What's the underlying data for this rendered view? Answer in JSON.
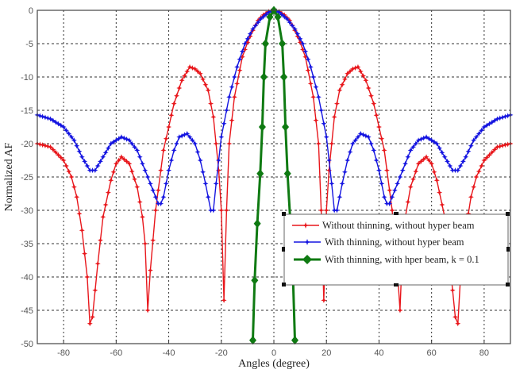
{
  "chart_data": {
    "type": "line",
    "title": "",
    "xlabel": "Angles (degree)",
    "ylabel": "Normalized AF",
    "xlim": [
      -90,
      90
    ],
    "ylim": [
      -50,
      0
    ],
    "xticks": [
      -80,
      -60,
      -40,
      -20,
      0,
      20,
      40,
      60,
      80
    ],
    "yticks": [
      0,
      -5,
      -10,
      -15,
      -20,
      -25,
      -30,
      -35,
      -40,
      -45,
      -50
    ],
    "grid": true,
    "legend_position": "lower right (inside)",
    "series": [
      {
        "name": "Without thinning, without hyper beam",
        "color": "#e8161b",
        "marker": "star",
        "x": [
          -90,
          -85,
          -80,
          -77,
          -75,
          -73,
          -71,
          -70,
          -69,
          -67,
          -65,
          -62,
          -60,
          -58,
          -55,
          -52,
          -50,
          -49,
          -48,
          -47,
          -45,
          -42,
          -38,
          -35,
          -32,
          -30,
          -28,
          -25,
          -23,
          -21,
          -20,
          -19,
          -18,
          -17,
          -15,
          -12,
          -10,
          -8,
          -6,
          -4,
          -2,
          0,
          2,
          4,
          6,
          8,
          10,
          12,
          15,
          17,
          18,
          19,
          20,
          21,
          23,
          25,
          28,
          30,
          32,
          35,
          38,
          42,
          45,
          47,
          48,
          49,
          50,
          52,
          55,
          58,
          60,
          62,
          65,
          67,
          69,
          70,
          71,
          73,
          75,
          77,
          80,
          85,
          90
        ],
        "values": [
          -20,
          -20.5,
          -22.5,
          -25,
          -28,
          -33,
          -40,
          -47,
          -46,
          -38,
          -31,
          -25.5,
          -23,
          -22,
          -23,
          -26.5,
          -31,
          -35,
          -45,
          -39,
          -30,
          -21,
          -14,
          -10.5,
          -8.5,
          -8.8,
          -9.5,
          -12,
          -16,
          -24,
          -30,
          -43.5,
          -30,
          -20,
          -13,
          -7,
          -4.8,
          -3,
          -1.5,
          -0.7,
          -0.2,
          0,
          -0.2,
          -0.7,
          -1.5,
          -3,
          -4.8,
          -7,
          -13,
          -20,
          -30,
          -43.5,
          -30,
          -24,
          -16,
          -12,
          -9.5,
          -8.8,
          -8.5,
          -10.5,
          -14,
          -21,
          -30,
          -39,
          -45,
          -35,
          -31,
          -26.5,
          -23,
          -22,
          -23,
          -25.5,
          -31,
          -38,
          -46,
          -47,
          -40,
          -33,
          -28,
          -25,
          -22.5,
          -20.5,
          -20
        ]
      },
      {
        "name": "With thinning, without hyper beam",
        "color": "#1414e0",
        "marker": "star",
        "x": [
          -90,
          -85,
          -80,
          -76,
          -73,
          -70,
          -68,
          -65,
          -62,
          -58,
          -55,
          -52,
          -49,
          -46,
          -44,
          -43,
          -42,
          -40,
          -38,
          -36,
          -33,
          -30,
          -28,
          -26,
          -24,
          -23,
          -22,
          -20,
          -17,
          -14,
          -11,
          -8,
          -5,
          -2,
          0,
          2,
          5,
          8,
          11,
          14,
          17,
          20,
          22,
          23,
          24,
          26,
          28,
          30,
          33,
          36,
          38,
          40,
          42,
          43,
          44,
          46,
          49,
          52,
          55,
          58,
          62,
          65,
          68,
          70,
          73,
          76,
          80,
          85,
          90
        ],
        "values": [
          -15.7,
          -16.3,
          -17.5,
          -19.5,
          -22,
          -24,
          -24,
          -22,
          -20,
          -19,
          -19.5,
          -21,
          -24,
          -27,
          -29,
          -29,
          -28,
          -24,
          -21,
          -19,
          -18.5,
          -20,
          -22.5,
          -26,
          -30,
          -30,
          -26,
          -19,
          -13,
          -8.5,
          -5,
          -2.8,
          -1.3,
          -0.3,
          0,
          -0.3,
          -1.3,
          -2.8,
          -5,
          -8.5,
          -13,
          -19,
          -26,
          -30,
          -30,
          -26,
          -22.5,
          -20,
          -18.5,
          -19,
          -21,
          -24,
          -28,
          -29,
          -29,
          -27,
          -24,
          -21,
          -19.5,
          -19,
          -20,
          -22,
          -24,
          -24,
          -22,
          -19.5,
          -17.5,
          -16.3,
          -15.7
        ]
      },
      {
        "name": "With thinning, with hper beam, k = 0.1",
        "color": "#0f7a12",
        "marker": "diamond",
        "x": [
          -8,
          -7.3,
          -6.3,
          -5.2,
          -4.4,
          -3.8,
          -3.2,
          -1.5,
          0,
          1.5,
          3.2,
          3.8,
          4.4,
          5.2,
          6.3,
          7.3,
          8
        ],
        "values": [
          -49.5,
          -40.5,
          -32,
          -24.5,
          -17.5,
          -10,
          -5,
          -1,
          0,
          -1,
          -5,
          -10,
          -17.5,
          -24.5,
          -32,
          -40.5,
          -49.5
        ]
      }
    ]
  },
  "legend": {
    "items": [
      {
        "label": "Without thinning, without hyper beam",
        "color": "#e8161b"
      },
      {
        "label": "With thinning, without hyper beam",
        "color": "#1414e0"
      },
      {
        "label": "With thinning, with hper beam, k = 0.1",
        "color": "#0f7a12"
      }
    ]
  },
  "axis": {
    "xlabel": "Angles (degree)",
    "ylabel": "Normalized AF"
  }
}
